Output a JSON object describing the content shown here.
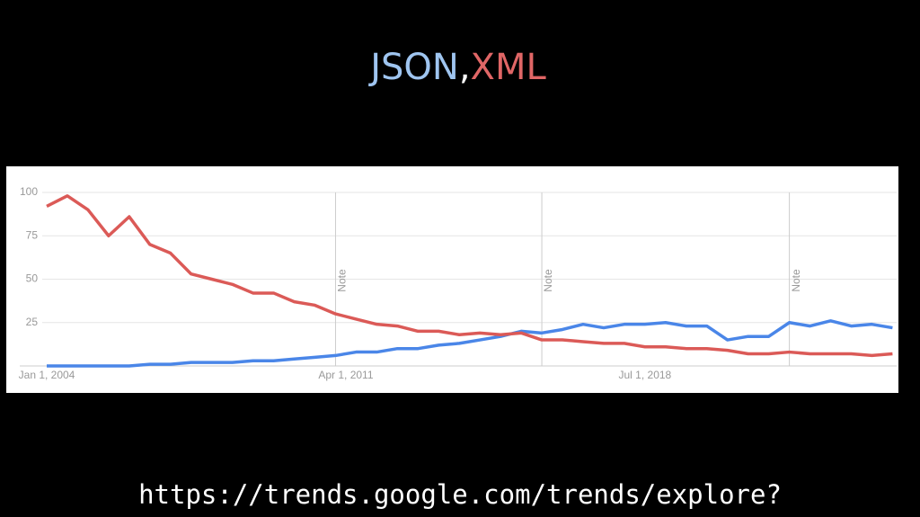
{
  "title_separator": ",",
  "url": "https://trends.google.com/trends/explore?",
  "chart_data": {
    "type": "line",
    "x": [
      2004.0,
      2004.5,
      2005.0,
      2005.5,
      2006.0,
      2006.5,
      2007.0,
      2007.5,
      2008.0,
      2008.5,
      2009.0,
      2009.5,
      2010.0,
      2010.5,
      2011.0,
      2011.5,
      2012.0,
      2012.5,
      2013.0,
      2013.5,
      2014.0,
      2014.5,
      2015.0,
      2015.5,
      2016.0,
      2016.5,
      2017.0,
      2017.5,
      2018.0,
      2018.5,
      2019.0,
      2019.5,
      2020.0,
      2020.5,
      2021.0,
      2021.5,
      2022.0,
      2022.5,
      2023.0,
      2023.5,
      2024.0,
      2024.5
    ],
    "series": [
      {
        "name": "JSON",
        "color": "#4a86e8",
        "title_color": "#9fc5f0",
        "values": [
          0,
          0,
          0,
          0,
          0,
          1,
          1,
          2,
          2,
          2,
          3,
          3,
          4,
          5,
          6,
          8,
          8,
          10,
          10,
          12,
          13,
          15,
          17,
          20,
          19,
          21,
          24,
          22,
          24,
          24,
          25,
          23,
          23,
          15,
          17,
          17,
          25,
          23,
          26,
          23,
          24,
          22
        ]
      },
      {
        "name": "XML",
        "color": "#db5a57",
        "title_color": "#e06666",
        "values": [
          92,
          98,
          90,
          75,
          86,
          70,
          65,
          53,
          50,
          47,
          42,
          42,
          37,
          35,
          30,
          27,
          24,
          23,
          20,
          20,
          18,
          19,
          18,
          19,
          15,
          15,
          14,
          13,
          13,
          11,
          11,
          10,
          10,
          9,
          7,
          7,
          8,
          7,
          7,
          7,
          6,
          7
        ]
      }
    ],
    "xlim": [
      2004.0,
      2024.6
    ],
    "xticks": [
      {
        "value": 2004.0,
        "label": "Jan 1, 2004"
      },
      {
        "value": 2011.25,
        "label": "Apr 1, 2011"
      },
      {
        "value": 2018.5,
        "label": "Jul 1, 2018"
      }
    ],
    "ylim": [
      0,
      100
    ],
    "yticks": [
      25,
      50,
      75,
      100
    ],
    "grid": true,
    "annotations": [
      {
        "x": 2011.0,
        "text": "Note"
      },
      {
        "x": 2016.0,
        "text": "Note"
      },
      {
        "x": 2022.0,
        "text": "Note"
      }
    ]
  }
}
